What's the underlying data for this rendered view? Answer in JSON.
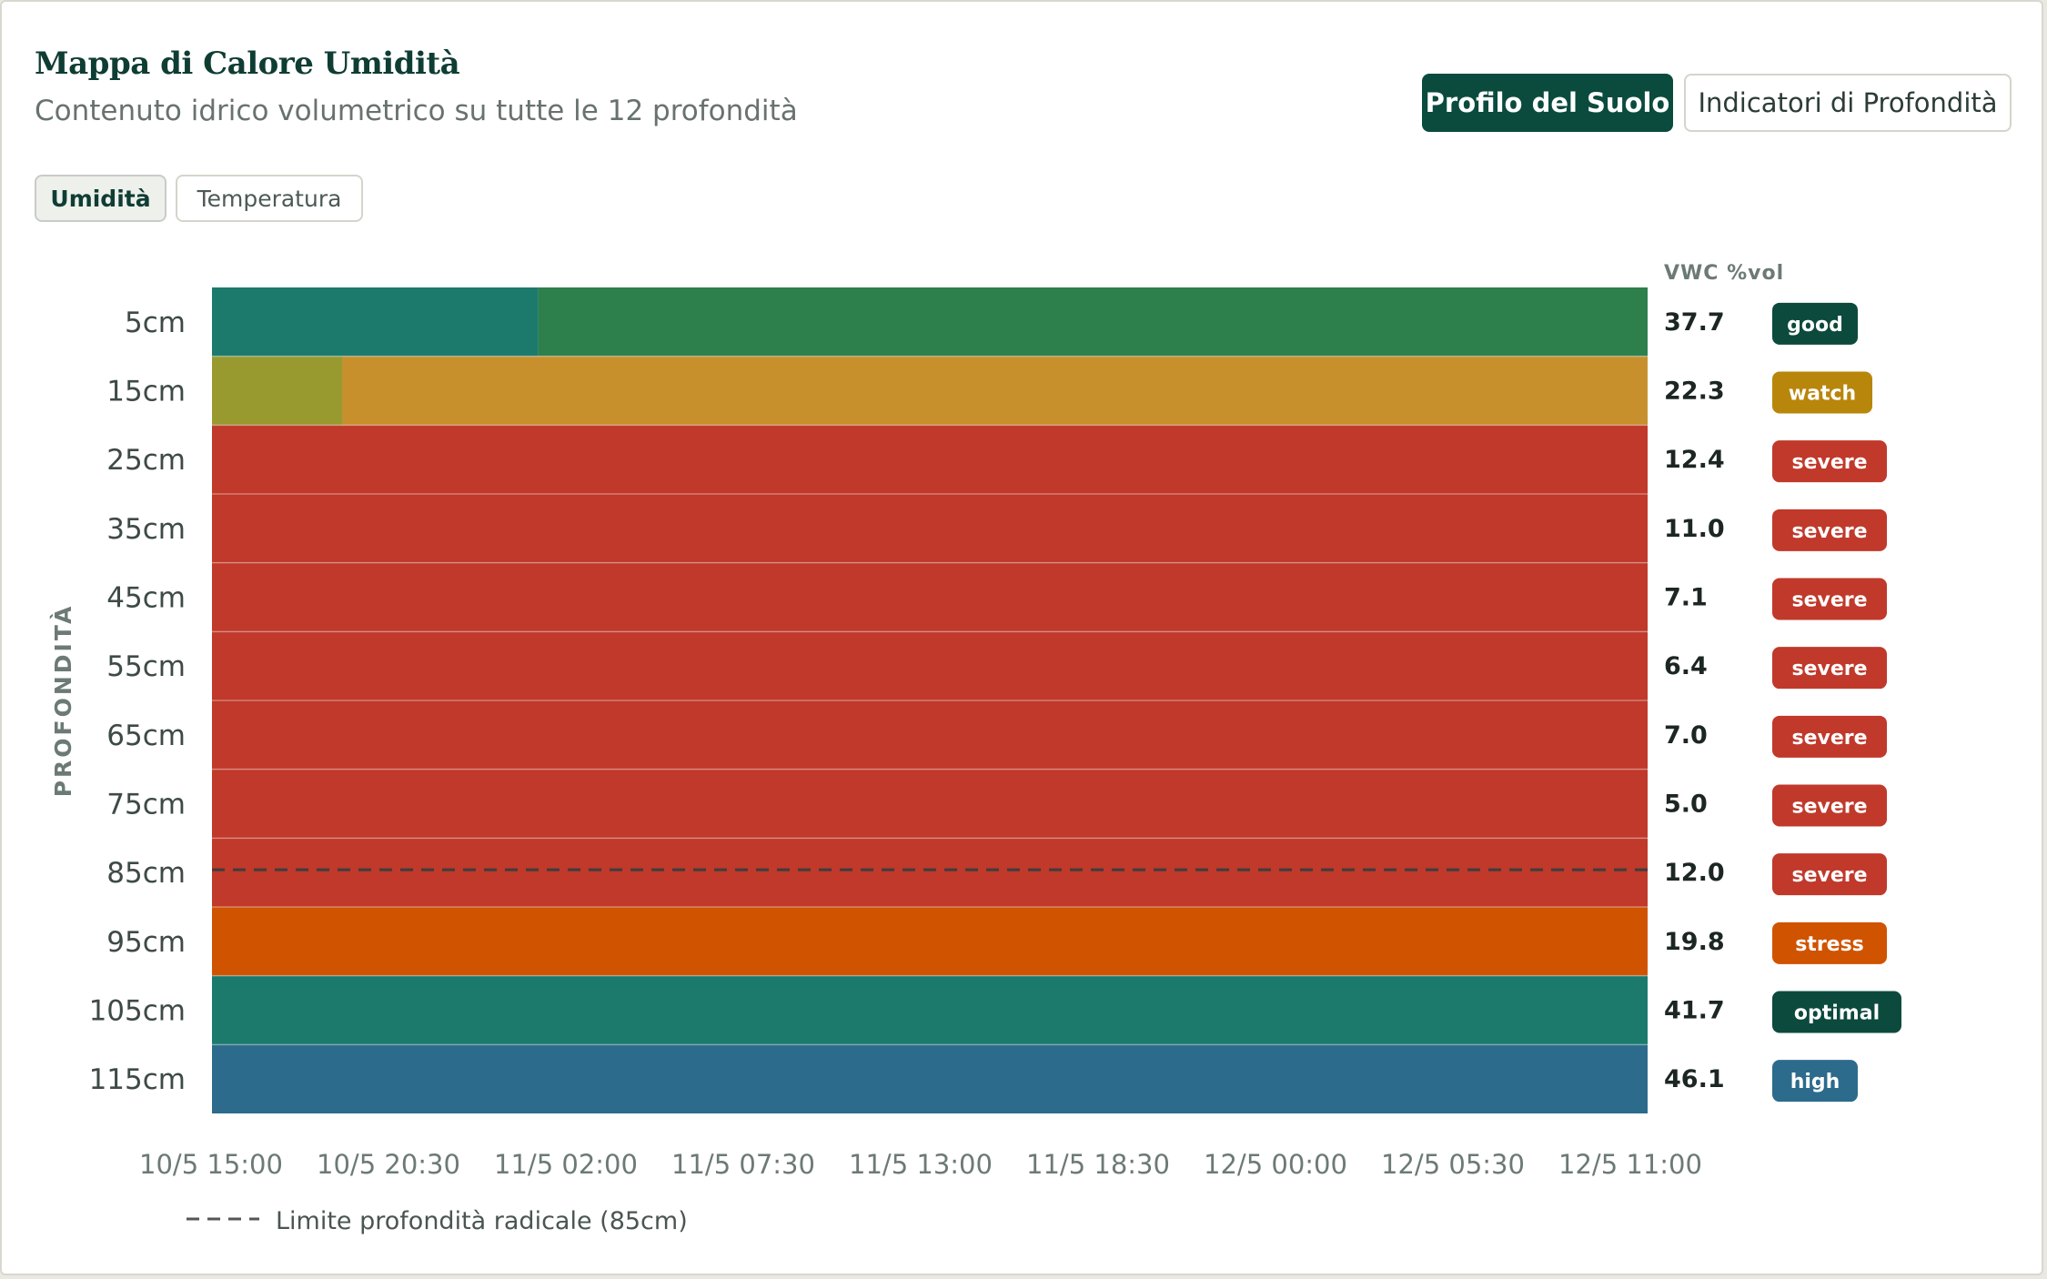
{
  "header": {
    "title": "Mappa di Calore Umidità",
    "subtitle": "Contenuto idrico volumetrico su tutte le 12 profondità"
  },
  "view_toggle": {
    "soil_profile_label": "Profilo del Suolo",
    "depth_indicators_label": "Indicatori di Profondità"
  },
  "tabs": {
    "moisture_label": "Umidità",
    "temperature_label": "Temperatura"
  },
  "chart_data": {
    "type": "heatmap",
    "ylabel": "PROFONDITÀ",
    "value_column_header": "VWC %vol",
    "x_ticks": [
      "10/5 15:00",
      "10/5 20:30",
      "11/5 02:00",
      "11/5 07:30",
      "11/5 13:00",
      "11/5 18:30",
      "12/5 00:00",
      "12/5 05:30",
      "12/5 11:00"
    ],
    "x_range": [
      "10/5 15:00",
      "12/5 11:00"
    ],
    "rows": [
      {
        "depth": "5cm",
        "value": "37.7",
        "status": "good",
        "segments": [
          {
            "start": "10/5 15:00",
            "end": "11/5 01:00",
            "color": "#1b7a6c"
          },
          {
            "start": "11/5 01:00",
            "end": "12/5 11:00",
            "color": "#2d7f4c"
          }
        ]
      },
      {
        "depth": "15cm",
        "value": "22.3",
        "status": "watch",
        "segments": [
          {
            "start": "10/5 15:00",
            "end": "10/5 19:00",
            "color": "#989a2f"
          },
          {
            "start": "10/5 19:00",
            "end": "12/5 11:00",
            "color": "#c8902d"
          }
        ]
      },
      {
        "depth": "25cm",
        "value": "12.4",
        "status": "severe",
        "segments": [
          {
            "start": "10/5 15:00",
            "end": "12/5 11:00",
            "color": "#c0392b"
          }
        ]
      },
      {
        "depth": "35cm",
        "value": "11.0",
        "status": "severe",
        "segments": [
          {
            "start": "10/5 15:00",
            "end": "12/5 11:00",
            "color": "#c0392b"
          }
        ]
      },
      {
        "depth": "45cm",
        "value": "7.1",
        "status": "severe",
        "segments": [
          {
            "start": "10/5 15:00",
            "end": "12/5 11:00",
            "color": "#c0392b"
          }
        ]
      },
      {
        "depth": "55cm",
        "value": "6.4",
        "status": "severe",
        "segments": [
          {
            "start": "10/5 15:00",
            "end": "12/5 11:00",
            "color": "#c0392b"
          }
        ]
      },
      {
        "depth": "65cm",
        "value": "7.0",
        "status": "severe",
        "segments": [
          {
            "start": "10/5 15:00",
            "end": "12/5 11:00",
            "color": "#c0392b"
          }
        ]
      },
      {
        "depth": "75cm",
        "value": "5.0",
        "status": "severe",
        "segments": [
          {
            "start": "10/5 15:00",
            "end": "12/5 11:00",
            "color": "#c0392b"
          }
        ]
      },
      {
        "depth": "85cm",
        "value": "12.0",
        "status": "severe",
        "segments": [
          {
            "start": "10/5 15:00",
            "end": "12/5 11:00",
            "color": "#c0392b"
          }
        ]
      },
      {
        "depth": "95cm",
        "value": "19.8",
        "status": "stress",
        "segments": [
          {
            "start": "10/5 15:00",
            "end": "12/5 11:00",
            "color": "#d05300"
          }
        ]
      },
      {
        "depth": "105cm",
        "value": "41.7",
        "status": "optimal",
        "segments": [
          {
            "start": "10/5 15:00",
            "end": "12/5 11:00",
            "color": "#1b7a6c"
          }
        ]
      },
      {
        "depth": "115cm",
        "value": "46.1",
        "status": "high",
        "segments": [
          {
            "start": "10/5 15:00",
            "end": "12/5 11:00",
            "color": "#2c6b8c"
          }
        ]
      }
    ],
    "status_colors": {
      "good": "#0c4a3d",
      "watch": "#b8860b",
      "severe": "#c0392b",
      "stress": "#d05300",
      "optimal": "#0c4a3d",
      "high": "#2c6b8c"
    },
    "root_limit": {
      "depth": "85cm",
      "label": "Limite profondità radicale (85cm)"
    }
  }
}
